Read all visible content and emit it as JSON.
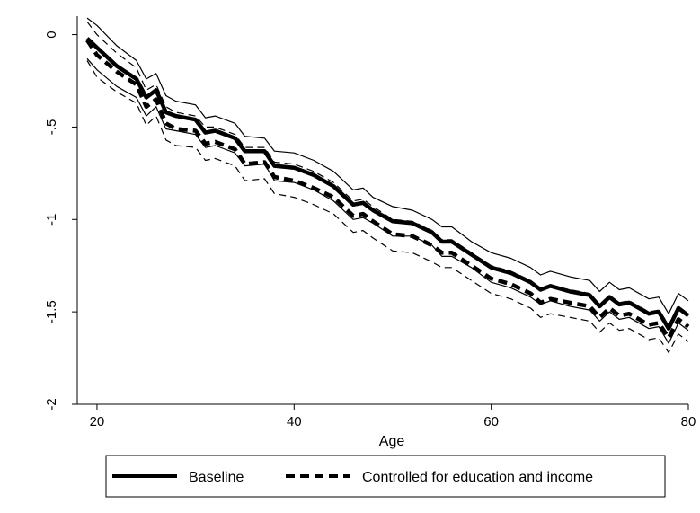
{
  "chart_data": {
    "type": "line",
    "title": "",
    "xlabel": "Age",
    "ylabel": "",
    "xlim": [
      18,
      80
    ],
    "ylim": [
      -2,
      0.1
    ],
    "xticks": [
      20,
      40,
      60,
      80
    ],
    "xtick_labels": [
      "20",
      "40",
      "60",
      "80"
    ],
    "yticks": [
      0,
      -0.5,
      -1,
      -1.5,
      -2
    ],
    "ytick_labels": [
      "0",
      "-.5",
      "-1",
      "-1.5",
      "-2"
    ],
    "grid": false,
    "legend_position": "bottom",
    "x": [
      19,
      20,
      22,
      24,
      25,
      26,
      27,
      28,
      30,
      31,
      32,
      34,
      35,
      37,
      38,
      40,
      42,
      44,
      46,
      47,
      48,
      50,
      52,
      54,
      55,
      56,
      58,
      60,
      62,
      64,
      65,
      66,
      68,
      70,
      71,
      72,
      73,
      74,
      76,
      77,
      78,
      79,
      80
    ],
    "series": [
      {
        "name": "Baseline",
        "style": "solid-thick",
        "values": [
          -0.02,
          -0.07,
          -0.17,
          -0.24,
          -0.34,
          -0.3,
          -0.42,
          -0.44,
          -0.46,
          -0.53,
          -0.52,
          -0.56,
          -0.63,
          -0.63,
          -0.71,
          -0.72,
          -0.76,
          -0.82,
          -0.92,
          -0.91,
          -0.95,
          -1.01,
          -1.02,
          -1.07,
          -1.12,
          -1.12,
          -1.19,
          -1.26,
          -1.29,
          -1.34,
          -1.38,
          -1.36,
          -1.39,
          -1.41,
          -1.47,
          -1.42,
          -1.46,
          -1.45,
          -1.51,
          -1.5,
          -1.59,
          -1.48,
          -1.52
        ]
      },
      {
        "name": "Baseline CI upper",
        "style": "solid-thin",
        "values": [
          0.09,
          0.05,
          -0.06,
          -0.14,
          -0.24,
          -0.21,
          -0.33,
          -0.36,
          -0.38,
          -0.45,
          -0.44,
          -0.48,
          -0.55,
          -0.56,
          -0.63,
          -0.64,
          -0.68,
          -0.74,
          -0.84,
          -0.83,
          -0.88,
          -0.93,
          -0.95,
          -1.0,
          -1.04,
          -1.04,
          -1.12,
          -1.18,
          -1.21,
          -1.26,
          -1.3,
          -1.28,
          -1.31,
          -1.33,
          -1.39,
          -1.34,
          -1.38,
          -1.37,
          -1.43,
          -1.42,
          -1.51,
          -1.4,
          -1.44
        ]
      },
      {
        "name": "Baseline CI lower",
        "style": "solid-thin",
        "values": [
          -0.13,
          -0.19,
          -0.28,
          -0.34,
          -0.44,
          -0.39,
          -0.51,
          -0.52,
          -0.54,
          -0.61,
          -0.6,
          -0.64,
          -0.71,
          -0.7,
          -0.79,
          -0.8,
          -0.84,
          -0.9,
          -1.0,
          -0.99,
          -1.02,
          -1.09,
          -1.09,
          -1.14,
          -1.2,
          -1.2,
          -1.26,
          -1.34,
          -1.37,
          -1.42,
          -1.46,
          -1.44,
          -1.47,
          -1.49,
          -1.55,
          -1.5,
          -1.54,
          -1.53,
          -1.59,
          -1.58,
          -1.67,
          -1.56,
          -1.6
        ]
      },
      {
        "name": "Controlled for education and income",
        "style": "dashed-thick",
        "values": [
          -0.03,
          -0.11,
          -0.2,
          -0.27,
          -0.39,
          -0.35,
          -0.48,
          -0.51,
          -0.52,
          -0.59,
          -0.58,
          -0.62,
          -0.7,
          -0.69,
          -0.77,
          -0.79,
          -0.83,
          -0.88,
          -0.98,
          -0.97,
          -1.01,
          -1.08,
          -1.09,
          -1.14,
          -1.18,
          -1.18,
          -1.25,
          -1.32,
          -1.35,
          -1.4,
          -1.45,
          -1.43,
          -1.45,
          -1.47,
          -1.53,
          -1.48,
          -1.52,
          -1.51,
          -1.57,
          -1.56,
          -1.64,
          -1.54,
          -1.58
        ]
      },
      {
        "name": "Controlled CI upper",
        "style": "dashed-thin",
        "values": [
          0.07,
          0.0,
          -0.1,
          -0.18,
          -0.3,
          -0.27,
          -0.39,
          -0.42,
          -0.44,
          -0.5,
          -0.5,
          -0.54,
          -0.61,
          -0.61,
          -0.69,
          -0.7,
          -0.74,
          -0.8,
          -0.9,
          -0.89,
          -0.93,
          -1.0,
          -1.01,
          -1.06,
          -1.11,
          -1.11,
          -1.18,
          -1.25,
          -1.28,
          -1.33,
          -1.38,
          -1.36,
          -1.38,
          -1.4,
          -1.46,
          -1.41,
          -1.45,
          -1.44,
          -1.5,
          -1.49,
          -1.57,
          -1.47,
          -1.51
        ]
      },
      {
        "name": "Controlled CI lower",
        "style": "dashed-thin",
        "values": [
          -0.14,
          -0.23,
          -0.31,
          -0.37,
          -0.49,
          -0.44,
          -0.57,
          -0.6,
          -0.61,
          -0.68,
          -0.67,
          -0.71,
          -0.79,
          -0.78,
          -0.86,
          -0.88,
          -0.92,
          -0.97,
          -1.07,
          -1.06,
          -1.1,
          -1.17,
          -1.18,
          -1.23,
          -1.26,
          -1.26,
          -1.33,
          -1.4,
          -1.43,
          -1.48,
          -1.53,
          -1.51,
          -1.53,
          -1.55,
          -1.61,
          -1.56,
          -1.6,
          -1.59,
          -1.65,
          -1.64,
          -1.72,
          -1.62,
          -1.66
        ]
      }
    ]
  },
  "legend": {
    "items": [
      {
        "label": "Baseline",
        "style": "solid-thick"
      },
      {
        "label": "Controlled for education and income",
        "style": "dashed-thick"
      }
    ]
  }
}
